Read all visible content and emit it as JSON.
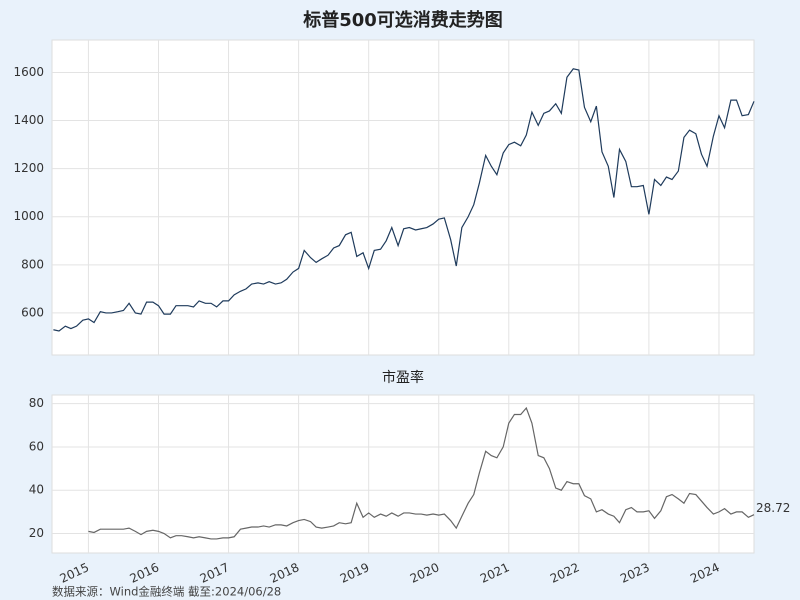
{
  "chart_data": [
    {
      "type": "line",
      "title": "标普500可选消费走势图",
      "color": "#1f3b5c",
      "x": [
        2014.5,
        2014.58,
        2014.67,
        2014.75,
        2014.83,
        2014.92,
        2015,
        2015.08,
        2015.17,
        2015.25,
        2015.33,
        2015.42,
        2015.5,
        2015.58,
        2015.67,
        2015.75,
        2015.83,
        2015.92,
        2016,
        2016.08,
        2016.17,
        2016.25,
        2016.33,
        2016.42,
        2016.5,
        2016.58,
        2016.67,
        2016.75,
        2016.83,
        2016.92,
        2017,
        2017.08,
        2017.17,
        2017.25,
        2017.33,
        2017.42,
        2017.5,
        2017.58,
        2017.67,
        2017.75,
        2017.83,
        2017.92,
        2018,
        2018.08,
        2018.17,
        2018.25,
        2018.33,
        2018.42,
        2018.5,
        2018.58,
        2018.67,
        2018.75,
        2018.83,
        2018.92,
        2019,
        2019.08,
        2019.17,
        2019.25,
        2019.33,
        2019.42,
        2019.5,
        2019.58,
        2019.67,
        2019.75,
        2019.83,
        2019.92,
        2020,
        2020.08,
        2020.17,
        2020.25,
        2020.33,
        2020.42,
        2020.5,
        2020.58,
        2020.67,
        2020.75,
        2020.83,
        2020.92,
        2021,
        2021.08,
        2021.17,
        2021.25,
        2021.33,
        2021.42,
        2021.5,
        2021.58,
        2021.67,
        2021.75,
        2021.83,
        2021.92,
        2022,
        2022.08,
        2022.17,
        2022.25,
        2022.33,
        2022.42,
        2022.5,
        2022.58,
        2022.67,
        2022.75,
        2022.83,
        2022.92,
        2023,
        2023.08,
        2023.17,
        2023.25,
        2023.33,
        2023.42,
        2023.5,
        2023.58,
        2023.67,
        2023.75,
        2023.83,
        2023.92,
        2024,
        2024.08,
        2024.17,
        2024.25,
        2024.33,
        2024.42,
        2024.5
      ],
      "values": [
        530,
        525,
        545,
        535,
        545,
        570,
        575,
        560,
        605,
        600,
        600,
        605,
        610,
        640,
        600,
        595,
        645,
        645,
        630,
        595,
        595,
        630,
        630,
        630,
        625,
        650,
        640,
        640,
        625,
        650,
        650,
        675,
        690,
        700,
        720,
        725,
        720,
        730,
        720,
        725,
        740,
        770,
        785,
        860,
        830,
        810,
        825,
        840,
        870,
        880,
        925,
        935,
        835,
        850,
        785,
        860,
        865,
        900,
        955,
        880,
        950,
        955,
        945,
        950,
        955,
        970,
        990,
        995,
        905,
        795,
        955,
        1000,
        1050,
        1140,
        1255,
        1210,
        1175,
        1265,
        1300,
        1310,
        1295,
        1340,
        1435,
        1380,
        1430,
        1440,
        1470,
        1430,
        1580,
        1615,
        1610,
        1455,
        1395,
        1460,
        1270,
        1210,
        1080,
        1280,
        1230,
        1125,
        1125,
        1130,
        1010,
        1155,
        1130,
        1165,
        1155,
        1190,
        1330,
        1360,
        1345,
        1260,
        1210,
        1335,
        1420,
        1370,
        1485,
        1485,
        1420,
        1425,
        1480
      ],
      "xlim": [
        2014.48,
        2024.5
      ],
      "xticks": [
        2015,
        2016,
        2017,
        2018,
        2019,
        2020,
        2021,
        2022,
        2023,
        2024
      ],
      "ylim": [
        425,
        1735
      ],
      "yticks": [
        600,
        800,
        1000,
        1200,
        1400,
        1600
      ],
      "grid": true
    },
    {
      "type": "line",
      "title": "市盈率",
      "color": "#666666",
      "x": [
        2015,
        2015.08,
        2015.17,
        2015.25,
        2015.33,
        2015.42,
        2015.5,
        2015.58,
        2015.67,
        2015.75,
        2015.83,
        2015.92,
        2016,
        2016.08,
        2016.17,
        2016.25,
        2016.33,
        2016.42,
        2016.5,
        2016.58,
        2016.67,
        2016.75,
        2016.83,
        2016.92,
        2017,
        2017.08,
        2017.17,
        2017.25,
        2017.33,
        2017.42,
        2017.5,
        2017.58,
        2017.67,
        2017.75,
        2017.83,
        2017.92,
        2018,
        2018.08,
        2018.17,
        2018.25,
        2018.33,
        2018.42,
        2018.5,
        2018.58,
        2018.67,
        2018.75,
        2018.83,
        2018.92,
        2019,
        2019.08,
        2019.17,
        2019.25,
        2019.33,
        2019.42,
        2019.5,
        2019.58,
        2019.67,
        2019.75,
        2019.83,
        2019.92,
        2020,
        2020.08,
        2020.17,
        2020.25,
        2020.33,
        2020.42,
        2020.5,
        2020.58,
        2020.67,
        2020.75,
        2020.83,
        2020.92,
        2021,
        2021.08,
        2021.17,
        2021.25,
        2021.33,
        2021.42,
        2021.5,
        2021.58,
        2021.67,
        2021.75,
        2021.83,
        2021.92,
        2022,
        2022.08,
        2022.17,
        2022.25,
        2022.33,
        2022.42,
        2022.5,
        2022.58,
        2022.67,
        2022.75,
        2022.83,
        2022.92,
        2023,
        2023.08,
        2023.17,
        2023.25,
        2023.33,
        2023.42,
        2023.5,
        2023.58,
        2023.67,
        2023.75,
        2023.83,
        2023.92,
        2024,
        2024.08,
        2024.17,
        2024.25,
        2024.33,
        2024.42,
        2024.5
      ],
      "values": [
        21,
        20.5,
        22,
        22,
        22,
        22,
        22,
        22.5,
        21,
        19.5,
        21,
        21.5,
        21,
        20,
        18,
        19,
        19,
        18.5,
        18,
        18.5,
        18,
        17.5,
        17.5,
        18,
        18,
        18.5,
        22,
        22.5,
        23,
        23,
        23.5,
        23,
        24,
        24,
        23.5,
        25,
        26,
        26.5,
        25.5,
        23,
        22.5,
        23,
        23.5,
        25,
        24.5,
        25,
        34,
        27.5,
        29.5,
        27.5,
        29,
        28,
        29.5,
        28,
        29.5,
        29.5,
        29,
        29,
        28.5,
        29,
        28.5,
        29,
        26,
        22.5,
        28,
        34,
        38,
        48,
        58,
        56,
        55,
        60,
        71,
        75,
        75,
        78,
        71,
        56,
        55,
        50,
        41,
        40,
        44,
        43,
        43,
        37.5,
        36,
        30,
        31,
        29,
        28,
        25,
        31,
        32,
        30,
        30,
        30.5,
        27,
        30.5,
        37,
        38,
        36,
        34,
        38.5,
        38,
        35,
        32,
        29,
        30,
        31.5,
        29,
        30,
        30,
        27.5,
        28.72
      ],
      "xlim": [
        2014.48,
        2024.5
      ],
      "xticks": [
        2015,
        2016,
        2017,
        2018,
        2019,
        2020,
        2021,
        2022,
        2023,
        2024
      ],
      "ylim": [
        11,
        84
      ],
      "yticks": [
        20,
        40,
        60,
        80
      ],
      "grid": true
    }
  ],
  "source": "数据来源：Wind金融终端 截至:2024/06/28"
}
